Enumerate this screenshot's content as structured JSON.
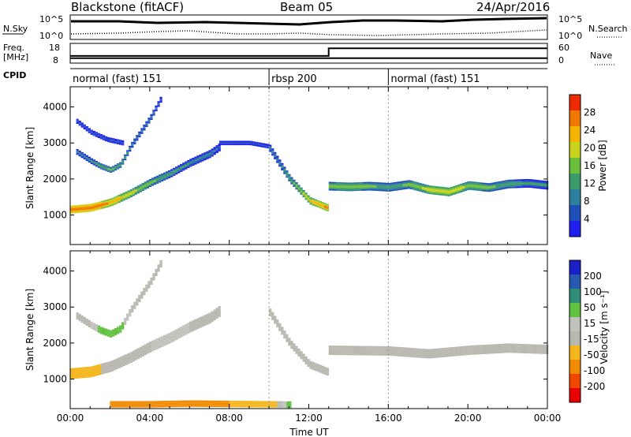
{
  "header": {
    "station": "Blackstone (fitACF)",
    "beam": "Beam 05",
    "date": "24/Apr/2016"
  },
  "noise_panel": {
    "left_label": "N.Sky",
    "right_label": "N.Search",
    "left_ticks": [
      "10^5",
      "10^0"
    ],
    "right_ticks": [
      "10^5",
      "10^0"
    ]
  },
  "freq_panel": {
    "left_label_1": "Freq.",
    "left_label_2": "[MHz]",
    "left_ticks": [
      "18",
      "8"
    ],
    "right_ticks": [
      "60",
      "0"
    ],
    "right_label": "Nave",
    "series": [
      {
        "name": "Freq.",
        "x": [
          0,
          24
        ],
        "y": [
          10.5,
          10.5
        ]
      },
      {
        "name": "Nave",
        "x": [
          0,
          13,
          13,
          24
        ],
        "y": [
          22,
          22,
          45,
          45
        ]
      }
    ]
  },
  "cpid": {
    "label": "CPID",
    "segments": [
      {
        "label": "normal (fast) 151",
        "start": 0,
        "end": 10
      },
      {
        "label": "rbsp 200",
        "start": 10,
        "end": 16
      },
      {
        "label": "normal (fast) 151",
        "start": 16,
        "end": 24
      }
    ]
  },
  "colors": {
    "power": [
      "#1e1ef0",
      "#1f4fb8",
      "#2e7e9e",
      "#3a9a6a",
      "#6cbf3c",
      "#c8d41c",
      "#f4b400",
      "#f07800",
      "#ee2a00"
    ],
    "velocity": [
      "#e80000",
      "#f04800",
      "#f08a00",
      "#f4b61c",
      "#b8b8b0",
      "#c2c2bc",
      "#60c040",
      "#2e8e78",
      "#2858b0",
      "#1a20c8"
    ]
  },
  "chart_data": [
    {
      "type": "heatmap",
      "title": "Power",
      "xlabel": "Time UT",
      "ylabel": "Slant Range [km]",
      "xlim": [
        0,
        24
      ],
      "ylim": [
        180,
        4560
      ],
      "yticks": [
        "1000",
        "2000",
        "3000",
        "4000"
      ],
      "colorbar": {
        "label": "Power [dB]",
        "ticks": [
          "4",
          "8",
          "12",
          "16",
          "20",
          "24",
          "28"
        ],
        "range": [
          0,
          30
        ]
      },
      "traces": [
        {
          "feature": "main backscatter",
          "x": [
            0,
            1,
            2,
            3,
            4,
            5,
            6,
            7,
            7.5
          ],
          "y": [
            1150,
            1200,
            1350,
            1600,
            1900,
            2150,
            2450,
            2700,
            2900
          ],
          "width_km": 220,
          "power_dB": [
            28,
            28,
            25,
            20,
            16,
            13,
            12,
            10,
            8
          ]
        },
        {
          "feature": "upper band",
          "x": [
            0.3,
            1,
            1.5,
            2,
            2.5,
            3,
            4,
            4.6
          ],
          "y": [
            2750,
            2500,
            2350,
            2250,
            2400,
            2900,
            3700,
            4300
          ],
          "width_km": 160,
          "power_dB": [
            10,
            12,
            14,
            16,
            14,
            12,
            10,
            8
          ]
        },
        {
          "feature": "upper band 2",
          "x": [
            0.3,
            1,
            1.8,
            2.6
          ],
          "y": [
            3600,
            3300,
            3100,
            3000
          ],
          "width_km": 140,
          "power_dB": [
            8,
            8,
            8,
            8
          ]
        },
        {
          "feature": "post-8UT band",
          "x": [
            7.5,
            9,
            10
          ],
          "y": [
            3000,
            3000,
            2900
          ],
          "width_km": 120,
          "power_dB": [
            8,
            8,
            8
          ]
        },
        {
          "feature": "descending band",
          "x": [
            10,
            11,
            12,
            12.9
          ],
          "y": [
            2850,
            2000,
            1400,
            1200
          ],
          "width_km": 200,
          "power_dB": [
            10,
            14,
            22,
            26
          ]
        },
        {
          "feature": "post-13UT band",
          "x": [
            13,
            14,
            15,
            16,
            17,
            18,
            19,
            20,
            21,
            22,
            23,
            24
          ],
          "y": [
            1800,
            1780,
            1800,
            1770,
            1850,
            1700,
            1640,
            1820,
            1760,
            1860,
            1880,
            1820
          ],
          "width_km": 240,
          "power_dB": [
            16,
            18,
            16,
            14,
            16,
            20,
            22,
            18,
            16,
            14,
            12,
            12
          ]
        }
      ]
    },
    {
      "type": "heatmap",
      "title": "Velocity",
      "xlabel": "Time UT",
      "ylabel": "Slant Range [km]",
      "xlim": [
        0,
        24
      ],
      "ylim": [
        180,
        4560
      ],
      "xticks": [
        "00:00",
        "04:00",
        "08:00",
        "12:00",
        "16:00",
        "20:00",
        "00:00"
      ],
      "yticks": [
        "1000",
        "2000",
        "3000",
        "4000"
      ],
      "colorbar": {
        "label": "Velocity [m s⁻¹]",
        "ticks": [
          "200",
          "100",
          "50",
          "15",
          "-15",
          "-50",
          "-100",
          "-200"
        ]
      },
      "traces": [
        {
          "feature": "main backscatter",
          "x": [
            0,
            1,
            2,
            3,
            4,
            5,
            6,
            7,
            7.5
          ],
          "y": [
            1150,
            1200,
            1350,
            1600,
            1900,
            2150,
            2450,
            2700,
            2900
          ],
          "width_km": 300,
          "velocity": [
            -40,
            -20,
            -10,
            0,
            0,
            5,
            0,
            0,
            0
          ]
        },
        {
          "feature": "upper band",
          "x": [
            0.3,
            1,
            1.5,
            2,
            2.5,
            3,
            4,
            4.6
          ],
          "y": [
            2750,
            2500,
            2350,
            2250,
            2400,
            2900,
            3700,
            4300
          ],
          "width_km": 200,
          "velocity": [
            0,
            0,
            20,
            40,
            20,
            0,
            0,
            0
          ]
        },
        {
          "feature": "descending band",
          "x": [
            10,
            11,
            12,
            12.9
          ],
          "y": [
            2850,
            2000,
            1400,
            1200
          ],
          "width_km": 220,
          "velocity": [
            0,
            0,
            0,
            0
          ]
        },
        {
          "feature": "post-13UT band",
          "x": [
            13,
            16,
            18,
            20,
            22,
            24
          ],
          "y": [
            1800,
            1780,
            1700,
            1800,
            1860,
            1820
          ],
          "width_km": 260,
          "velocity": [
            0,
            0,
            0,
            0,
            0,
            0
          ]
        },
        {
          "feature": "ground scatter",
          "x": [
            2,
            4,
            6,
            8,
            10,
            11
          ],
          "y": [
            300,
            300,
            320,
            310,
            300,
            290
          ],
          "width_km": 180,
          "velocity": [
            -60,
            -60,
            -50,
            -50,
            -40,
            30
          ]
        }
      ]
    }
  ]
}
